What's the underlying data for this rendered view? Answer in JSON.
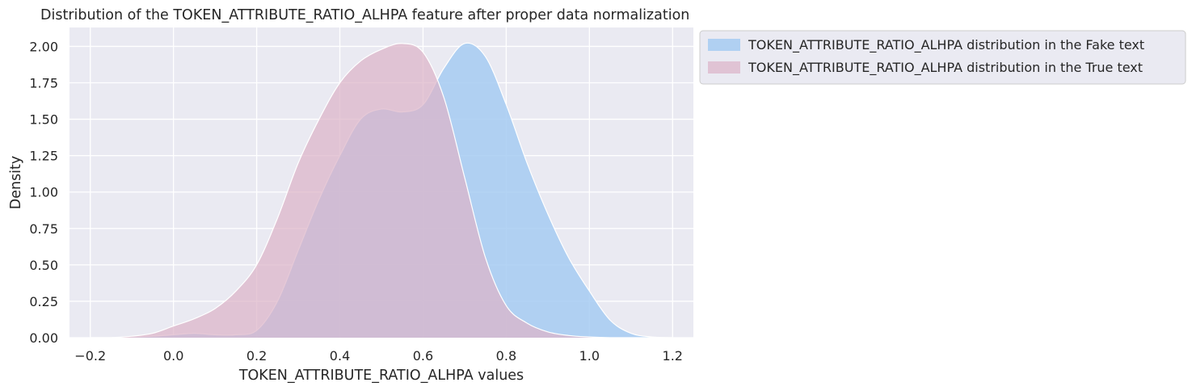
{
  "chart_data": {
    "type": "area",
    "title": "Distribution of the TOKEN_ATTRIBUTE_RATIO_ALHPA feature after proper data normalization",
    "xlabel": "TOKEN_ATTRIBUTE_RATIO_ALHPA values",
    "ylabel": "Density",
    "xlim": [
      -0.25,
      1.25
    ],
    "ylim": [
      0,
      2.13
    ],
    "xticks": [
      -0.2,
      0.0,
      0.2,
      0.4,
      0.6,
      0.8,
      1.0,
      1.2
    ],
    "xtick_labels": [
      "−0.2",
      "0.0",
      "0.2",
      "0.4",
      "0.6",
      "0.8",
      "1.0",
      "1.2"
    ],
    "yticks": [
      0,
      0.25,
      0.5,
      0.75,
      1.0,
      1.25,
      1.5,
      1.75,
      2.0
    ],
    "ytick_labels": [
      "0.00",
      "0.25",
      "0.50",
      "0.75",
      "1.00",
      "1.25",
      "1.50",
      "1.75",
      "2.00"
    ],
    "grid": true,
    "legend_position": "outside-upper-right",
    "colors": {
      "background": "#eaeaf2",
      "grid": "#ffffff",
      "fake_fill": "#a6cbf2",
      "true_fill": "#dcb4c8",
      "overlap": "#b2acd4",
      "legend_bg": "#eaeaf2",
      "legend_border": "#cccccc",
      "text": "#262626"
    },
    "x": [
      -0.2,
      -0.15,
      -0.1,
      -0.05,
      0.0,
      0.05,
      0.1,
      0.15,
      0.2,
      0.25,
      0.3,
      0.35,
      0.4,
      0.45,
      0.5,
      0.55,
      0.6,
      0.65,
      0.7,
      0.75,
      0.8,
      0.85,
      0.9,
      0.95,
      1.0,
      1.05,
      1.1,
      1.15,
      1.2
    ],
    "series": [
      {
        "name": "TOKEN_ATTRIBUTE_RATIO_ALHPA distribution in the Fake text",
        "color": "#a6cbf2",
        "values": [
          0,
          0,
          0.005,
          0.01,
          0.02,
          0.03,
          0.02,
          0.02,
          0.05,
          0.25,
          0.6,
          0.95,
          1.25,
          1.5,
          1.57,
          1.55,
          1.6,
          1.85,
          2.02,
          1.93,
          1.6,
          1.2,
          0.85,
          0.55,
          0.32,
          0.12,
          0.03,
          0.005,
          0
        ]
      },
      {
        "name": "TOKEN_ATTRIBUTE_RATIO_ALHPA distribution in the True text",
        "color": "#dcb4c8",
        "values": [
          0,
          0,
          0.01,
          0.03,
          0.08,
          0.13,
          0.2,
          0.32,
          0.5,
          0.82,
          1.2,
          1.5,
          1.75,
          1.9,
          1.98,
          2.02,
          1.96,
          1.65,
          1.1,
          0.55,
          0.22,
          0.1,
          0.04,
          0.015,
          0.005,
          0,
          0,
          0,
          0
        ]
      }
    ]
  }
}
